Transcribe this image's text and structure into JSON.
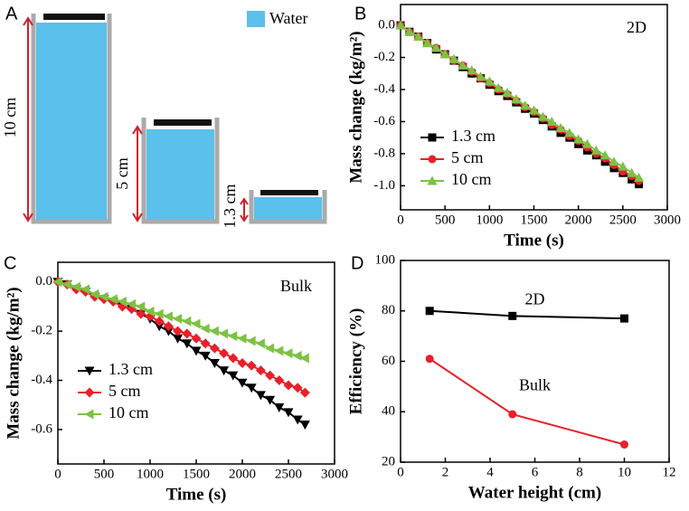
{
  "diagram": {
    "panel_label": "A",
    "legend": "Water",
    "heights": [
      "10 cm",
      "5 cm",
      "1.3 cm"
    ]
  },
  "chart_data": [
    {
      "type": "line",
      "panel_label": "B",
      "annotation": "2D",
      "x_label": "Time (s)",
      "y_label": "Mass change (kg/m²)",
      "x": [
        0,
        100,
        200,
        300,
        400,
        500,
        600,
        700,
        800,
        900,
        1000,
        1100,
        1200,
        1300,
        1400,
        1500,
        1600,
        1700,
        1800,
        1900,
        2000,
        2100,
        2200,
        2300,
        2400,
        2500,
        2600,
        2680
      ],
      "series": [
        {
          "name": "1.3 cm",
          "color": "#000000",
          "marker": "square",
          "values": [
            0,
            -0.04,
            -0.07,
            -0.11,
            -0.15,
            -0.18,
            -0.22,
            -0.26,
            -0.3,
            -0.33,
            -0.37,
            -0.41,
            -0.44,
            -0.48,
            -0.52,
            -0.55,
            -0.59,
            -0.63,
            -0.67,
            -0.7,
            -0.74,
            -0.78,
            -0.81,
            -0.85,
            -0.89,
            -0.92,
            -0.96,
            -0.99
          ]
        },
        {
          "name": "5 cm",
          "color": "#e8202a",
          "marker": "circle",
          "values": [
            0,
            -0.04,
            -0.07,
            -0.11,
            -0.14,
            -0.18,
            -0.22,
            -0.25,
            -0.29,
            -0.33,
            -0.36,
            -0.4,
            -0.43,
            -0.47,
            -0.51,
            -0.54,
            -0.58,
            -0.62,
            -0.65,
            -0.69,
            -0.72,
            -0.76,
            -0.8,
            -0.83,
            -0.87,
            -0.91,
            -0.94,
            -0.97
          ]
        },
        {
          "name": "10 cm",
          "color": "#7dc242",
          "marker": "triangle-up",
          "values": [
            0,
            -0.04,
            -0.07,
            -0.11,
            -0.14,
            -0.18,
            -0.21,
            -0.25,
            -0.28,
            -0.32,
            -0.35,
            -0.39,
            -0.42,
            -0.46,
            -0.5,
            -0.53,
            -0.57,
            -0.6,
            -0.64,
            -0.67,
            -0.71,
            -0.74,
            -0.78,
            -0.81,
            -0.85,
            -0.88,
            -0.92,
            -0.95
          ]
        }
      ],
      "xlim": [
        0,
        3000
      ],
      "xticks": [
        0,
        500,
        1000,
        1500,
        2000,
        2500,
        3000
      ],
      "ylim": [
        -1.15,
        0.13
      ],
      "yticks": [
        {
          "value": 0,
          "label": "0.0"
        },
        -0.2,
        -0.4,
        -0.6,
        -0.8,
        {
          "value": -1,
          "label": "-1.0"
        }
      ],
      "legend": "lower left"
    },
    {
      "type": "line",
      "panel_label": "C",
      "annotation": "Bulk",
      "x_label": "Time (s)",
      "y_label": "Mass change (kg/m²)",
      "x": [
        0,
        100,
        200,
        300,
        400,
        500,
        600,
        700,
        800,
        900,
        1000,
        1100,
        1200,
        1300,
        1400,
        1500,
        1600,
        1700,
        1800,
        1900,
        2000,
        2100,
        2200,
        2300,
        2400,
        2500,
        2600,
        2680
      ],
      "series": [
        {
          "name": "1.3 cm",
          "color": "#000000",
          "marker": "triangle-down",
          "values": [
            0,
            -0.01,
            -0.03,
            -0.04,
            -0.06,
            -0.07,
            -0.08,
            -0.1,
            -0.11,
            -0.13,
            -0.15,
            -0.18,
            -0.2,
            -0.23,
            -0.25,
            -0.28,
            -0.3,
            -0.33,
            -0.36,
            -0.38,
            -0.41,
            -0.43,
            -0.46,
            -0.48,
            -0.51,
            -0.53,
            -0.56,
            -0.58
          ]
        },
        {
          "name": "5 cm",
          "color": "#e8202a",
          "marker": "diamond",
          "values": [
            0,
            -0.01,
            -0.03,
            -0.04,
            -0.06,
            -0.07,
            -0.08,
            -0.1,
            -0.11,
            -0.13,
            -0.14,
            -0.16,
            -0.18,
            -0.2,
            -0.21,
            -0.23,
            -0.25,
            -0.27,
            -0.29,
            -0.31,
            -0.33,
            -0.34,
            -0.36,
            -0.38,
            -0.4,
            -0.42,
            -0.43,
            -0.45
          ]
        },
        {
          "name": "10 cm",
          "color": "#7dc242",
          "marker": "triangle-left",
          "values": [
            0,
            -0.01,
            -0.02,
            -0.03,
            -0.05,
            -0.06,
            -0.07,
            -0.08,
            -0.09,
            -0.1,
            -0.12,
            -0.13,
            -0.14,
            -0.15,
            -0.16,
            -0.17,
            -0.19,
            -0.2,
            -0.21,
            -0.22,
            -0.23,
            -0.24,
            -0.25,
            -0.27,
            -0.28,
            -0.29,
            -0.3,
            -0.31
          ]
        }
      ],
      "xlim": [
        0,
        3000
      ],
      "xticks": [
        0,
        500,
        1000,
        1500,
        2000,
        2500,
        3000
      ],
      "ylim": [
        -0.74,
        0.08
      ],
      "yticks": [
        {
          "value": 0,
          "label": "0.0"
        },
        -0.2,
        -0.4,
        -0.6
      ],
      "legend": "lower left"
    },
    {
      "type": "line",
      "panel_label": "D",
      "x_label": "Water height (cm)",
      "y_label": "Efficiency (%)",
      "x": [
        1.3,
        5,
        10
      ],
      "series": [
        {
          "name": "2D",
          "color": "#000000",
          "marker": "square",
          "values": [
            80,
            78,
            77
          ]
        },
        {
          "name": "Bulk",
          "color": "#e8202a",
          "marker": "circle",
          "values": [
            61,
            39,
            27
          ]
        }
      ],
      "xlim": [
        0,
        12
      ],
      "xticks": [
        0,
        2,
        4,
        6,
        8,
        10,
        12
      ],
      "ylim": [
        20,
        100
      ],
      "yticks": [
        20,
        40,
        60,
        80,
        100
      ]
    }
  ]
}
